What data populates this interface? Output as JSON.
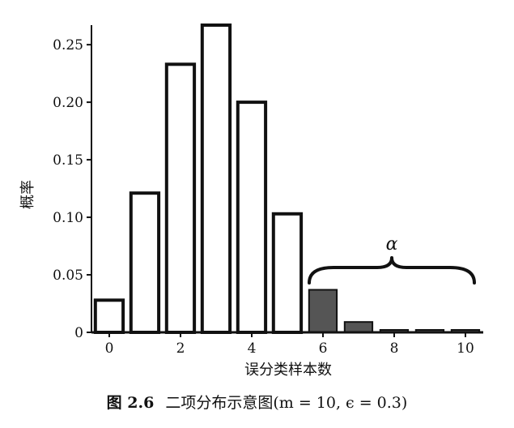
{
  "chart_data": {
    "type": "bar",
    "x": [
      0,
      1,
      2,
      3,
      4,
      5,
      6,
      7,
      8,
      9,
      10
    ],
    "values": [
      0.028,
      0.121,
      0.233,
      0.267,
      0.2,
      0.103,
      0.037,
      0.009,
      0.001,
      0.0001,
      5.9e-06
    ],
    "highlighted_from": 6,
    "ylabel": "概率",
    "xlabel": "误分类样本数",
    "yticks": [
      0,
      0.05,
      0.1,
      0.15,
      0.2,
      0.25
    ],
    "ytick_labels": [
      "0",
      "0.05",
      "0.10",
      "0.15",
      "0.20",
      "0.25"
    ],
    "xticks": [
      0,
      2,
      4,
      6,
      8,
      10
    ],
    "xtick_labels": [
      "0",
      "2",
      "4",
      "6",
      "8",
      "10"
    ],
    "ylim": [
      0,
      0.267
    ],
    "xlim": [
      -0.5,
      10.5
    ],
    "bar_color": "#ffffff",
    "highlight_color": "#555555",
    "annotation": "α"
  },
  "caption": {
    "label": "图 2.6",
    "text": "二项分布示意图(m = 10, ϵ = 0.3)"
  }
}
